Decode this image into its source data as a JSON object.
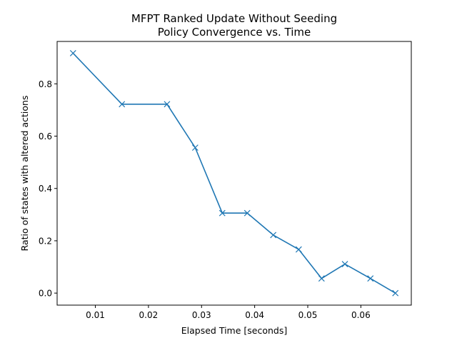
{
  "chart_data": {
    "type": "line",
    "title": [
      "MFPT Ranked Update Without Seeding",
      "Policy Convergence vs. Time"
    ],
    "xlabel": "Elapsed Time [seconds]",
    "ylabel": "Ratio of states with altered actions",
    "xlim": [
      0.0028,
      0.0695
    ],
    "ylim": [
      -0.046,
      0.962
    ],
    "xticks": [
      0.01,
      0.02,
      0.03,
      0.04,
      0.05,
      0.06
    ],
    "xtick_labels": [
      "0.01",
      "0.02",
      "0.03",
      "0.04",
      "0.05",
      "0.06"
    ],
    "yticks": [
      0.0,
      0.2,
      0.4,
      0.6,
      0.8
    ],
    "ytick_labels": [
      "0.0",
      "0.2",
      "0.4",
      "0.6",
      "0.8"
    ],
    "grid": false,
    "series": [
      {
        "color": "#1f77b4",
        "marker": "x",
        "x": [
          0.0058,
          0.015,
          0.0235,
          0.0288,
          0.0339,
          0.0386,
          0.0435,
          0.0483,
          0.0526,
          0.057,
          0.0618,
          0.0665
        ],
        "y": [
          0.917,
          0.722,
          0.722,
          0.556,
          0.306,
          0.306,
          0.222,
          0.167,
          0.056,
          0.111,
          0.056,
          0.0
        ]
      }
    ]
  }
}
